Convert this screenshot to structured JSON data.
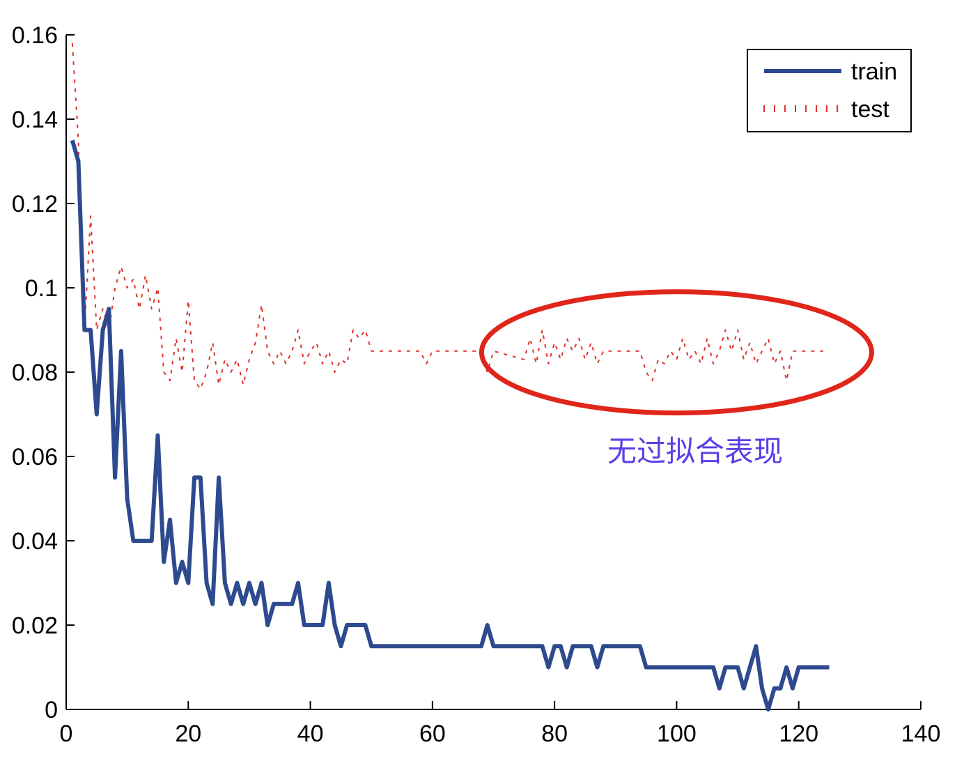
{
  "chart_data": {
    "type": "line",
    "title": "",
    "xlabel": "",
    "ylabel": "",
    "xlim": [
      0,
      140
    ],
    "ylim": [
      0,
      0.16
    ],
    "x_ticks": [
      "0",
      "20",
      "40",
      "60",
      "80",
      "100",
      "120",
      "140"
    ],
    "y_ticks": [
      "0",
      "0.02",
      "0.04",
      "0.06",
      "0.08",
      "0.1",
      "0.12",
      "0.14",
      "0.16"
    ],
    "legend_position": "top-right",
    "grid": false,
    "series": [
      {
        "name": "train",
        "style": "solid",
        "color": "#2e4a8f",
        "points": [
          [
            1,
            0.135
          ],
          [
            2,
            0.13
          ],
          [
            3,
            0.09
          ],
          [
            4,
            0.09
          ],
          [
            5,
            0.07
          ],
          [
            6,
            0.09
          ],
          [
            7,
            0.095
          ],
          [
            8,
            0.055
          ],
          [
            9,
            0.085
          ],
          [
            10,
            0.05
          ],
          [
            11,
            0.04
          ],
          [
            12,
            0.04
          ],
          [
            13,
            0.04
          ],
          [
            14,
            0.04
          ],
          [
            15,
            0.065
          ],
          [
            16,
            0.035
          ],
          [
            17,
            0.045
          ],
          [
            18,
            0.03
          ],
          [
            19,
            0.035
          ],
          [
            20,
            0.03
          ],
          [
            21,
            0.055
          ],
          [
            22,
            0.055
          ],
          [
            23,
            0.03
          ],
          [
            24,
            0.025
          ],
          [
            25,
            0.055
          ],
          [
            26,
            0.03
          ],
          [
            27,
            0.025
          ],
          [
            28,
            0.03
          ],
          [
            29,
            0.025
          ],
          [
            30,
            0.03
          ],
          [
            31,
            0.025
          ],
          [
            32,
            0.03
          ],
          [
            33,
            0.02
          ],
          [
            34,
            0.025
          ],
          [
            35,
            0.025
          ],
          [
            36,
            0.025
          ],
          [
            37,
            0.025
          ],
          [
            38,
            0.03
          ],
          [
            39,
            0.02
          ],
          [
            40,
            0.02
          ],
          [
            41,
            0.02
          ],
          [
            42,
            0.02
          ],
          [
            43,
            0.03
          ],
          [
            44,
            0.02
          ],
          [
            45,
            0.015
          ],
          [
            46,
            0.02
          ],
          [
            47,
            0.02
          ],
          [
            48,
            0.02
          ],
          [
            49,
            0.02
          ],
          [
            50,
            0.015
          ],
          [
            68,
            0.015
          ],
          [
            69,
            0.02
          ],
          [
            70,
            0.015
          ],
          [
            78,
            0.015
          ],
          [
            79,
            0.01
          ],
          [
            80,
            0.015
          ],
          [
            81,
            0.015
          ],
          [
            82,
            0.01
          ],
          [
            83,
            0.015
          ],
          [
            86,
            0.015
          ],
          [
            87,
            0.01
          ],
          [
            88,
            0.015
          ],
          [
            94,
            0.015
          ],
          [
            95,
            0.01
          ],
          [
            106,
            0.01
          ],
          [
            107,
            0.005
          ],
          [
            108,
            0.01
          ],
          [
            110,
            0.01
          ],
          [
            111,
            0.005
          ],
          [
            113,
            0.015
          ],
          [
            114,
            0.005
          ],
          [
            115,
            0.0
          ],
          [
            116,
            0.005
          ],
          [
            117,
            0.005
          ],
          [
            118,
            0.01
          ],
          [
            119,
            0.005
          ],
          [
            120,
            0.01
          ],
          [
            125,
            0.01
          ]
        ]
      },
      {
        "name": "test",
        "style": "dotted",
        "color": "#e0312a",
        "points": [
          [
            1,
            0.158
          ],
          [
            2,
            0.135
          ],
          [
            3,
            0.09
          ],
          [
            4,
            0.117
          ],
          [
            5,
            0.09
          ],
          [
            6,
            0.095
          ],
          [
            7,
            0.09
          ],
          [
            8,
            0.1
          ],
          [
            9,
            0.105
          ],
          [
            10,
            0.1
          ],
          [
            11,
            0.102
          ],
          [
            12,
            0.095
          ],
          [
            13,
            0.103
          ],
          [
            14,
            0.095
          ],
          [
            15,
            0.1
          ],
          [
            16,
            0.08
          ],
          [
            17,
            0.078
          ],
          [
            18,
            0.088
          ],
          [
            19,
            0.08
          ],
          [
            20,
            0.097
          ],
          [
            21,
            0.078
          ],
          [
            22,
            0.076
          ],
          [
            23,
            0.08
          ],
          [
            24,
            0.087
          ],
          [
            25,
            0.077
          ],
          [
            26,
            0.083
          ],
          [
            27,
            0.08
          ],
          [
            28,
            0.083
          ],
          [
            29,
            0.077
          ],
          [
            30,
            0.083
          ],
          [
            31,
            0.087
          ],
          [
            32,
            0.096
          ],
          [
            33,
            0.085
          ],
          [
            34,
            0.082
          ],
          [
            35,
            0.085
          ],
          [
            36,
            0.082
          ],
          [
            37,
            0.085
          ],
          [
            38,
            0.09
          ],
          [
            39,
            0.082
          ],
          [
            40,
            0.085
          ],
          [
            41,
            0.087
          ],
          [
            42,
            0.082
          ],
          [
            43,
            0.085
          ],
          [
            44,
            0.08
          ],
          [
            45,
            0.083
          ],
          [
            46,
            0.082
          ],
          [
            47,
            0.09
          ],
          [
            48,
            0.088
          ],
          [
            49,
            0.09
          ],
          [
            50,
            0.085
          ],
          [
            58,
            0.085
          ],
          [
            59,
            0.082
          ],
          [
            60,
            0.085
          ],
          [
            68,
            0.085
          ],
          [
            69,
            0.08
          ],
          [
            70,
            0.085
          ],
          [
            75,
            0.083
          ],
          [
            76,
            0.088
          ],
          [
            77,
            0.082
          ],
          [
            78,
            0.09
          ],
          [
            79,
            0.082
          ],
          [
            80,
            0.087
          ],
          [
            81,
            0.083
          ],
          [
            82,
            0.088
          ],
          [
            83,
            0.085
          ],
          [
            84,
            0.088
          ],
          [
            85,
            0.083
          ],
          [
            86,
            0.087
          ],
          [
            87,
            0.082
          ],
          [
            88,
            0.085
          ],
          [
            94,
            0.085
          ],
          [
            95,
            0.08
          ],
          [
            96,
            0.078
          ],
          [
            97,
            0.083
          ],
          [
            98,
            0.082
          ],
          [
            99,
            0.085
          ],
          [
            100,
            0.083
          ],
          [
            101,
            0.088
          ],
          [
            102,
            0.083
          ],
          [
            103,
            0.085
          ],
          [
            104,
            0.082
          ],
          [
            105,
            0.088
          ],
          [
            106,
            0.082
          ],
          [
            107,
            0.085
          ],
          [
            108,
            0.09
          ],
          [
            109,
            0.085
          ],
          [
            110,
            0.09
          ],
          [
            111,
            0.083
          ],
          [
            112,
            0.087
          ],
          [
            113,
            0.082
          ],
          [
            114,
            0.085
          ],
          [
            115,
            0.088
          ],
          [
            116,
            0.082
          ],
          [
            117,
            0.085
          ],
          [
            118,
            0.078
          ],
          [
            119,
            0.085
          ],
          [
            120,
            0.085
          ],
          [
            124,
            0.085
          ]
        ]
      }
    ],
    "annotations": [
      {
        "text": "无过拟合表现",
        "color": "#5b3ee6"
      }
    ],
    "highlight_color": "#e0261b"
  }
}
